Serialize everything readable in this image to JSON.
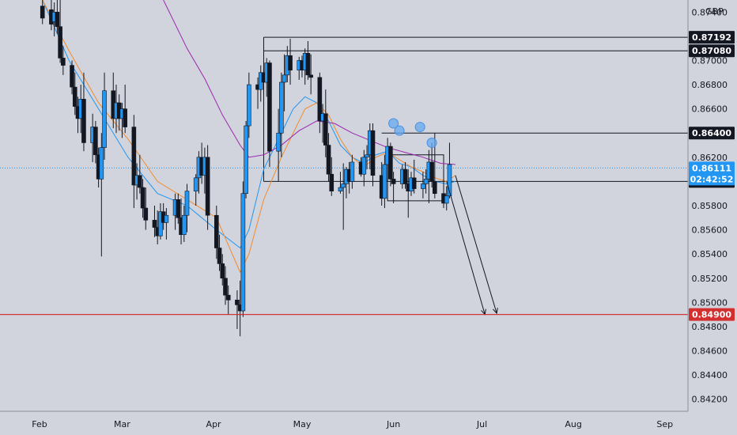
{
  "chart_data": {
    "type": "candlestick",
    "symbol_currency": "GBP",
    "y_axis": {
      "range": [
        0.841,
        0.875
      ],
      "ticks": [
        "0.87400",
        "0.87000",
        "0.86800",
        "0.86600",
        "0.86200",
        "0.85800",
        "0.85600",
        "0.85400",
        "0.85200",
        "0.85000",
        "0.84800",
        "0.84600",
        "0.84400",
        "0.84200"
      ]
    },
    "x_axis": {
      "ticks": [
        "Feb",
        "Mar",
        "Apr",
        "May",
        "Jun",
        "Jul",
        "Aug",
        "Sep"
      ],
      "tick_days": [
        0,
        28,
        59,
        89,
        120,
        150,
        181,
        212
      ]
    },
    "ohlc_days": [
      1,
      4,
      5,
      6,
      7,
      8,
      11,
      12,
      13,
      14,
      15,
      18,
      19,
      20,
      21,
      22,
      25,
      26,
      27,
      28,
      29,
      32,
      33,
      34,
      35,
      36,
      39,
      40,
      41,
      42,
      43,
      46,
      47,
      48,
      49,
      50,
      53,
      54,
      55,
      56,
      57,
      60,
      61,
      62,
      63,
      64,
      67,
      68,
      69,
      70,
      71,
      74,
      75,
      76,
      77,
      78,
      81,
      82,
      83,
      84,
      85,
      88,
      89,
      90,
      91,
      92,
      95,
      96,
      97,
      98,
      99,
      102,
      103,
      104,
      105,
      106,
      109,
      110,
      111,
      112,
      113,
      116,
      117,
      118,
      119,
      120,
      123,
      124,
      125,
      126,
      127,
      130,
      131,
      132,
      133,
      134,
      137,
      138,
      139,
      140,
      141
    ],
    "ohlc": [
      [
        0.8745,
        0.875,
        0.873,
        0.8735
      ],
      [
        0.8742,
        0.875,
        0.8725,
        0.873
      ],
      [
        0.8732,
        0.8748,
        0.872,
        0.874
      ],
      [
        0.874,
        0.8752,
        0.8722,
        0.8728
      ],
      [
        0.8728,
        0.875,
        0.8698,
        0.8702
      ],
      [
        0.8702,
        0.8712,
        0.8688,
        0.8696
      ],
      [
        0.8696,
        0.87,
        0.8672,
        0.8678
      ],
      [
        0.8678,
        0.869,
        0.8655,
        0.8662
      ],
      [
        0.8662,
        0.867,
        0.864,
        0.8652
      ],
      [
        0.8652,
        0.868,
        0.864,
        0.8668
      ],
      [
        0.8668,
        0.869,
        0.8625,
        0.8632
      ],
      [
        0.8632,
        0.8656,
        0.8616,
        0.8645
      ],
      [
        0.8645,
        0.865,
        0.8615,
        0.8622
      ],
      [
        0.8622,
        0.8628,
        0.8595,
        0.8602
      ],
      [
        0.8602,
        0.864,
        0.8538,
        0.8628
      ],
      [
        0.8628,
        0.869,
        0.8618,
        0.8675
      ],
      [
        0.8675,
        0.869,
        0.8644,
        0.8652
      ],
      [
        0.8652,
        0.868,
        0.864,
        0.8665
      ],
      [
        0.8665,
        0.8672,
        0.8642,
        0.8652
      ],
      [
        0.8652,
        0.8665,
        0.8636,
        0.866
      ],
      [
        0.866,
        0.868,
        0.864,
        0.8645
      ],
      [
        0.8645,
        0.8655,
        0.8578,
        0.8597
      ],
      [
        0.8597,
        0.8615,
        0.8585,
        0.8605
      ],
      [
        0.8605,
        0.8622,
        0.859,
        0.8595
      ],
      [
        0.8595,
        0.8602,
        0.857,
        0.8578
      ],
      [
        0.8578,
        0.8595,
        0.856,
        0.8568
      ],
      [
        0.8568,
        0.858,
        0.8554,
        0.8562
      ],
      [
        0.8562,
        0.8576,
        0.8548,
        0.8555
      ],
      [
        0.8555,
        0.8582,
        0.8552,
        0.8575
      ],
      [
        0.8575,
        0.8582,
        0.856,
        0.8566
      ],
      [
        0.8566,
        0.8578,
        0.8552,
        0.8572
      ],
      [
        0.8572,
        0.859,
        0.856,
        0.8585
      ],
      [
        0.8585,
        0.859,
        0.8565,
        0.857
      ],
      [
        0.857,
        0.8586,
        0.8548,
        0.8556
      ],
      [
        0.8556,
        0.858,
        0.855,
        0.8572
      ],
      [
        0.8572,
        0.8598,
        0.8558,
        0.8592
      ],
      [
        0.8592,
        0.8606,
        0.858,
        0.8603
      ],
      [
        0.8603,
        0.8625,
        0.859,
        0.862
      ],
      [
        0.862,
        0.8632,
        0.8598,
        0.8605
      ],
      [
        0.8605,
        0.8628,
        0.859,
        0.862
      ],
      [
        0.862,
        0.863,
        0.856,
        0.8572
      ],
      [
        0.8572,
        0.858,
        0.8536,
        0.8545
      ],
      [
        0.8545,
        0.8556,
        0.8526,
        0.8532
      ],
      [
        0.8532,
        0.854,
        0.8514,
        0.852
      ],
      [
        0.852,
        0.853,
        0.8498,
        0.8506
      ],
      [
        0.8506,
        0.8514,
        0.849,
        0.8502
      ],
      [
        0.8502,
        0.851,
        0.8478,
        0.8498
      ],
      [
        0.8498,
        0.8518,
        0.8472,
        0.8493
      ],
      [
        0.8493,
        0.86,
        0.8488,
        0.859
      ],
      [
        0.859,
        0.865,
        0.8586,
        0.8646
      ],
      [
        0.8646,
        0.869,
        0.8636,
        0.868
      ],
      [
        0.868,
        0.8686,
        0.866,
        0.8676
      ],
      [
        0.8676,
        0.8696,
        0.8666,
        0.869
      ],
      [
        0.869,
        0.8695,
        0.867,
        0.8682
      ],
      [
        0.8682,
        0.8702,
        0.867,
        0.8698
      ],
      [
        0.8698,
        0.87,
        0.8612,
        0.8625
      ],
      [
        0.8625,
        0.866,
        0.86,
        0.864
      ],
      [
        0.864,
        0.869,
        0.862,
        0.8682
      ],
      [
        0.8682,
        0.8705,
        0.8658,
        0.8688
      ],
      [
        0.8688,
        0.8712,
        0.8682,
        0.8704
      ],
      [
        0.8704,
        0.8718,
        0.868,
        0.8692
      ],
      [
        0.8692,
        0.8703,
        0.8684,
        0.87
      ],
      [
        0.87,
        0.8704,
        0.8686,
        0.8692
      ],
      [
        0.8692,
        0.871,
        0.868,
        0.8706
      ],
      [
        0.8706,
        0.8716,
        0.8684,
        0.8688
      ],
      [
        0.8688,
        0.8705,
        0.8672,
        0.8686
      ],
      [
        0.8686,
        0.869,
        0.864,
        0.865
      ],
      [
        0.865,
        0.8664,
        0.8632,
        0.8656
      ],
      [
        0.8656,
        0.8676,
        0.862,
        0.863
      ],
      [
        0.863,
        0.864,
        0.86,
        0.8606
      ],
      [
        0.8606,
        0.862,
        0.8588,
        0.8592
      ],
      [
        0.8592,
        0.8608,
        0.859,
        0.8595
      ],
      [
        0.8595,
        0.8615,
        0.856,
        0.8598
      ],
      [
        0.8598,
        0.8612,
        0.8586,
        0.861
      ],
      [
        0.861,
        0.8616,
        0.859,
        0.86
      ],
      [
        0.86,
        0.8622,
        0.8594,
        0.8616
      ],
      [
        0.8616,
        0.862,
        0.8604,
        0.8606
      ],
      [
        0.8606,
        0.8626,
        0.8596,
        0.862
      ],
      [
        0.862,
        0.863,
        0.861,
        0.8622
      ],
      [
        0.8622,
        0.8648,
        0.861,
        0.8642
      ],
      [
        0.8642,
        0.8648,
        0.8596,
        0.8605
      ],
      [
        0.8605,
        0.8616,
        0.858,
        0.8586
      ],
      [
        0.8586,
        0.8622,
        0.8578,
        0.8614
      ],
      [
        0.8614,
        0.8636,
        0.86,
        0.8629
      ],
      [
        0.8629,
        0.8632,
        0.8596,
        0.8602
      ],
      [
        0.8602,
        0.8608,
        0.8582,
        0.8598
      ],
      [
        0.8598,
        0.8614,
        0.8594,
        0.861
      ],
      [
        0.861,
        0.8616,
        0.8594,
        0.8598
      ],
      [
        0.8598,
        0.861,
        0.857,
        0.8592
      ],
      [
        0.8592,
        0.8608,
        0.8588,
        0.8603
      ],
      [
        0.8603,
        0.8618,
        0.859,
        0.8594
      ],
      [
        0.8594,
        0.8608,
        0.8586,
        0.8598
      ],
      [
        0.8598,
        0.861,
        0.859,
        0.8602
      ],
      [
        0.8602,
        0.8626,
        0.8582,
        0.8616
      ],
      [
        0.8616,
        0.8632,
        0.8595,
        0.86
      ],
      [
        0.86,
        0.864,
        0.8586,
        0.859
      ],
      [
        0.859,
        0.8604,
        0.8578,
        0.8582
      ],
      [
        0.8582,
        0.8596,
        0.8576,
        0.8588
      ],
      [
        0.8588,
        0.8632,
        0.8586,
        0.8614
      ]
    ],
    "horizontal_levels": [
      {
        "price": 0.87192,
        "label": "0.87192",
        "color": "#131722"
      },
      {
        "price": 0.8708,
        "label": "0.87080",
        "color": "#131722"
      },
      {
        "price": 0.864,
        "label": "0.86400",
        "color": "#131722"
      },
      {
        "price": 0.86,
        "label": "0.86000",
        "color": "#131722"
      },
      {
        "price": 0.849,
        "label": "0.84900",
        "color": "#d32f2f"
      }
    ],
    "current_price": {
      "price": 0.86111,
      "label": "0.86111",
      "countdown": "02:42:52",
      "color": "#2196f3"
    },
    "moving_averages": [
      {
        "color": "#2196f3",
        "points": [
          [
            1,
            0.875
          ],
          [
            10,
            0.87
          ],
          [
            20,
            0.866
          ],
          [
            30,
            0.862
          ],
          [
            40,
            0.859
          ],
          [
            50,
            0.858
          ],
          [
            60,
            0.856
          ],
          [
            68,
            0.8545
          ],
          [
            71,
            0.856
          ],
          [
            76,
            0.861
          ],
          [
            82,
            0.864
          ],
          [
            86,
            0.866
          ],
          [
            90,
            0.867
          ],
          [
            94,
            0.8665
          ],
          [
            98,
            0.865
          ],
          [
            102,
            0.863
          ],
          [
            106,
            0.862
          ],
          [
            110,
            0.8615
          ],
          [
            114,
            0.8622
          ],
          [
            118,
            0.8625
          ],
          [
            122,
            0.8615
          ],
          [
            126,
            0.8612
          ],
          [
            130,
            0.8605
          ],
          [
            134,
            0.86
          ],
          [
            138,
            0.8598
          ],
          [
            141,
            0.86
          ]
        ]
      },
      {
        "color": "#f28b2e",
        "points": [
          [
            1,
            0.875
          ],
          [
            10,
            0.8708
          ],
          [
            20,
            0.8665
          ],
          [
            30,
            0.8635
          ],
          [
            40,
            0.86
          ],
          [
            50,
            0.8585
          ],
          [
            60,
            0.857
          ],
          [
            68,
            0.8525
          ],
          [
            71,
            0.854
          ],
          [
            76,
            0.8585
          ],
          [
            82,
            0.862
          ],
          [
            86,
            0.864
          ],
          [
            90,
            0.866
          ],
          [
            94,
            0.8665
          ],
          [
            98,
            0.8655
          ],
          [
            102,
            0.8635
          ],
          [
            106,
            0.862
          ],
          [
            110,
            0.8612
          ],
          [
            114,
            0.862
          ],
          [
            118,
            0.8624
          ],
          [
            122,
            0.8618
          ],
          [
            126,
            0.8612
          ],
          [
            130,
            0.8608
          ],
          [
            134,
            0.8603
          ],
          [
            138,
            0.86
          ],
          [
            141,
            0.8605
          ]
        ]
      },
      {
        "color": "#9c27b0",
        "points": [
          [
            42,
            0.875
          ],
          [
            50,
            0.871
          ],
          [
            56,
            0.8685
          ],
          [
            62,
            0.8655
          ],
          [
            68,
            0.863
          ],
          [
            71,
            0.862
          ],
          [
            76,
            0.8622
          ],
          [
            82,
            0.863
          ],
          [
            88,
            0.8642
          ],
          [
            94,
            0.865
          ],
          [
            100,
            0.8648
          ],
          [
            106,
            0.864
          ],
          [
            112,
            0.8634
          ],
          [
            118,
            0.8628
          ],
          [
            124,
            0.8624
          ],
          [
            130,
            0.862
          ],
          [
            136,
            0.8615
          ],
          [
            141,
            0.8614
          ]
        ]
      }
    ],
    "circles": [
      [
        120,
        0.8648
      ],
      [
        122,
        0.8642
      ],
      [
        129,
        0.8645
      ],
      [
        133,
        0.8632
      ]
    ],
    "arrows": [
      [
        [
          138,
          0.86
        ],
        [
          151,
          0.849
        ]
      ],
      [
        [
          141,
          0.8605
        ],
        [
          155,
          0.8491
        ]
      ]
    ]
  }
}
